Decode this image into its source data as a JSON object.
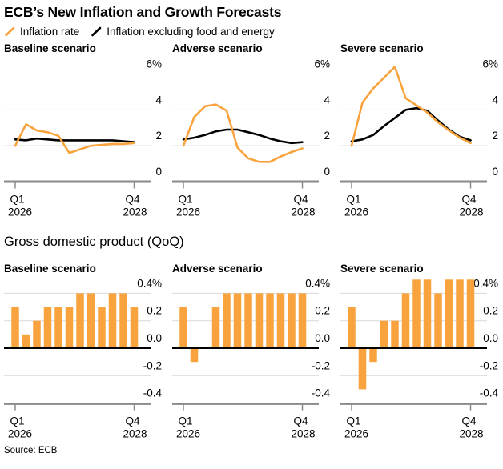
{
  "title": "ECB’s New Inflation and Growth Forecasts",
  "legend": {
    "items": [
      {
        "label": "Inflation rate",
        "color": "#F8A33D"
      },
      {
        "label": "Inflation excluding food and energy",
        "color": "#000000"
      }
    ]
  },
  "gdp_section_title": "Gross domestic product (QoQ)",
  "source": "Source: ECB",
  "colors": {
    "orange": "#F8A33D",
    "black": "#000000",
    "grid": "#D9D9D9",
    "axis": "#8A8A8A",
    "zero_line": "#000000",
    "background": "#FFFFFF"
  },
  "x_axis": {
    "labels_left": [
      "Q1",
      "2026"
    ],
    "labels_right": [
      "Q4",
      "2028"
    ],
    "categories": [
      "Q1 2026",
      "Q2 2026",
      "Q3 2026",
      "Q4 2026",
      "Q1 2027",
      "Q2 2027",
      "Q3 2027",
      "Q4 2027",
      "Q1 2028",
      "Q2 2028",
      "Q3 2028",
      "Q4 2028"
    ]
  },
  "chart_data": [
    {
      "id": "inflation-baseline",
      "type": "line",
      "title": "Baseline scenario",
      "ylabel": "%",
      "ylim": [
        0,
        6.6
      ],
      "yticks": [
        {
          "v": 0,
          "label": "0"
        },
        {
          "v": 2,
          "label": "2"
        },
        {
          "v": 4,
          "label": "4"
        },
        {
          "v": 6,
          "label": "6%"
        }
      ],
      "series": [
        {
          "name": "Inflation rate",
          "color_key": "orange",
          "values": [
            2.0,
            3.2,
            2.85,
            2.75,
            2.55,
            1.6,
            1.8,
            2.0,
            2.05,
            2.1,
            2.1,
            2.15
          ]
        },
        {
          "name": "Inflation excluding food and energy",
          "color_key": "black",
          "values": [
            2.35,
            2.3,
            2.4,
            2.35,
            2.3,
            2.3,
            2.3,
            2.3,
            2.3,
            2.3,
            2.25,
            2.2
          ]
        }
      ]
    },
    {
      "id": "inflation-adverse",
      "type": "line",
      "title": "Adverse scenario",
      "ylabel": "%",
      "ylim": [
        0,
        6.6
      ],
      "yticks": [
        {
          "v": 0,
          "label": "0"
        },
        {
          "v": 2,
          "label": "2"
        },
        {
          "v": 4,
          "label": "4"
        },
        {
          "v": 6,
          "label": "6%"
        }
      ],
      "series": [
        {
          "name": "Inflation rate",
          "color_key": "orange",
          "values": [
            2.0,
            3.6,
            4.2,
            4.3,
            3.95,
            1.9,
            1.3,
            1.1,
            1.1,
            1.4,
            1.65,
            1.85
          ]
        },
        {
          "name": "Inflation excluding food and energy",
          "color_key": "black",
          "values": [
            2.35,
            2.45,
            2.6,
            2.8,
            2.9,
            2.9,
            2.75,
            2.6,
            2.4,
            2.25,
            2.15,
            2.2
          ]
        }
      ]
    },
    {
      "id": "inflation-severe",
      "type": "line",
      "title": "Severe scenario",
      "ylabel": "%",
      "ylim": [
        0,
        6.6
      ],
      "yticks": [
        {
          "v": 0,
          "label": "0"
        },
        {
          "v": 2,
          "label": "2"
        },
        {
          "v": 4,
          "label": "4"
        },
        {
          "v": 6,
          "label": "6%"
        }
      ],
      "series": [
        {
          "name": "Inflation rate",
          "color_key": "orange",
          "values": [
            2.0,
            4.4,
            5.2,
            5.8,
            6.4,
            4.65,
            4.25,
            3.85,
            3.3,
            2.85,
            2.45,
            2.15
          ]
        },
        {
          "name": "Inflation excluding food and energy",
          "color_key": "black",
          "values": [
            2.25,
            2.35,
            2.6,
            3.1,
            3.55,
            4.0,
            4.1,
            3.95,
            3.4,
            2.9,
            2.5,
            2.3
          ]
        }
      ]
    },
    {
      "id": "gdp-baseline",
      "type": "bar",
      "title": "Baseline scenario",
      "ylabel": "%",
      "ylim": [
        -0.45,
        0.52
      ],
      "yticks": [
        {
          "v": 0.4,
          "label": "0.4%"
        },
        {
          "v": 0.2,
          "label": "0.2"
        },
        {
          "v": 0,
          "label": "0.0"
        },
        {
          "v": -0.2,
          "label": "-0.2"
        },
        {
          "v": -0.4,
          "label": "-0.4"
        }
      ],
      "values": [
        0.3,
        0.1,
        0.2,
        0.3,
        0.3,
        0.3,
        0.4,
        0.4,
        0.3,
        0.4,
        0.4,
        0.3
      ]
    },
    {
      "id": "gdp-adverse",
      "type": "bar",
      "title": "Adverse scenario",
      "ylabel": "%",
      "ylim": [
        -0.45,
        0.52
      ],
      "yticks": [
        {
          "v": 0.4,
          "label": "0.4%"
        },
        {
          "v": 0.2,
          "label": "0.2"
        },
        {
          "v": 0,
          "label": "0.0"
        },
        {
          "v": -0.2,
          "label": "-0.2"
        },
        {
          "v": -0.4,
          "label": "-0.4"
        }
      ],
      "values": [
        0.3,
        -0.1,
        0.0,
        0.3,
        0.4,
        0.4,
        0.4,
        0.4,
        0.4,
        0.4,
        0.4,
        0.4
      ]
    },
    {
      "id": "gdp-severe",
      "type": "bar",
      "title": "Severe scenario",
      "ylabel": "%",
      "ylim": [
        -0.45,
        0.52
      ],
      "yticks": [
        {
          "v": 0.4,
          "label": "0.4%"
        },
        {
          "v": 0.2,
          "label": "0.2"
        },
        {
          "v": 0,
          "label": "0.0"
        },
        {
          "v": -0.2,
          "label": "-0.2"
        },
        {
          "v": -0.4,
          "label": "-0.4"
        }
      ],
      "values": [
        0.3,
        -0.3,
        -0.1,
        0.2,
        0.2,
        0.4,
        0.5,
        0.5,
        0.4,
        0.5,
        0.5,
        0.5
      ]
    }
  ]
}
